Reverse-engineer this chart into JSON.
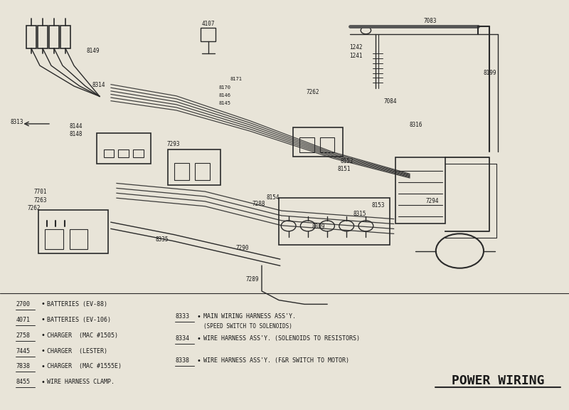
{
  "title": "POWER WIRING",
  "bg_color": "#e8e4d8",
  "line_color": "#2a2a2a",
  "text_color": "#1a1a1a",
  "legend_left": [
    {
      "num": "2700",
      "text": "BATTERIES (EV-88)"
    },
    {
      "num": "4071",
      "text": "BATTERIES (EV-106)"
    },
    {
      "num": "2758",
      "text": "CHARGER  (MAC #1505)"
    },
    {
      "num": "7445",
      "text": "CHARGER  (LESTER)"
    },
    {
      "num": "7838",
      "text": "CHARGER  (MAC #1555E)"
    },
    {
      "num": "8455",
      "text": "WIRE HARNESS CLAMP."
    }
  ],
  "legend_right": [
    {
      "num": "8333",
      "text": "MAIN WIRING HARNESS ASS'Y.",
      "sub": "(SPEED SWITCH TO SOLENOIDS)"
    },
    {
      "num": "8334",
      "text": "WIRE HARNESS ASS'Y. (SOLENOIDS TO RESISTORS)",
      "sub": ""
    },
    {
      "num": "8338",
      "text": "WIRE HARNESS ASS'Y. (F&R SWITCH TO MOTOR)",
      "sub": ""
    }
  ]
}
